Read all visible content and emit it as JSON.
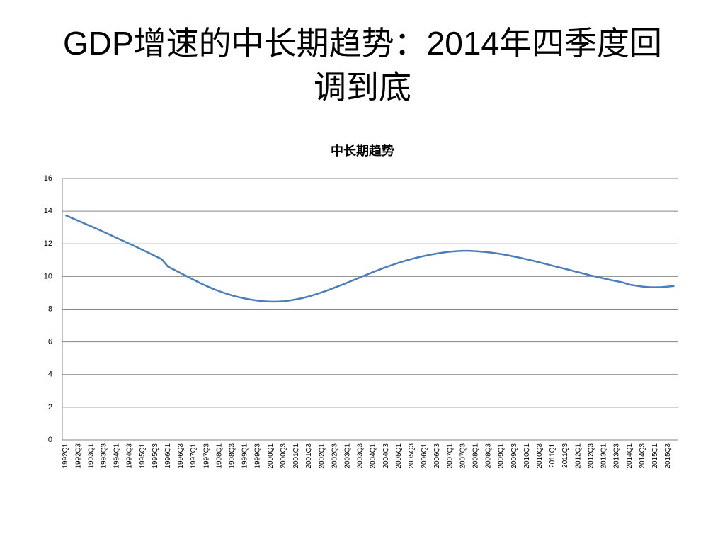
{
  "slide": {
    "title": "GDP增速的中长期趋势：2014年四季度回调到底"
  },
  "chart_data": {
    "type": "line",
    "title": "中长期趋势",
    "categories": [
      "1992Q1",
      null,
      "1992Q3",
      null,
      "1993Q1",
      null,
      "1993Q3",
      null,
      "1994Q1",
      null,
      "1994Q3",
      null,
      "1995Q1",
      null,
      "1995Q3",
      null,
      "1996Q1",
      null,
      "1996Q3",
      null,
      "1997Q1",
      null,
      "1997Q3",
      null,
      "1998Q1",
      null,
      "1998Q3",
      null,
      "1999Q1",
      null,
      "1999Q3",
      null,
      "2000Q1",
      null,
      "2000Q3",
      null,
      "2001Q1",
      null,
      "2001Q3",
      null,
      "2002Q1",
      null,
      "2002Q3",
      null,
      "2003Q1",
      null,
      "2003Q3",
      null,
      "2004Q1",
      null,
      "2004Q3",
      null,
      "2005Q1",
      null,
      "2005Q3",
      null,
      "2006Q1",
      null,
      "2006Q3",
      null,
      "2007Q1",
      null,
      "2007Q3",
      null,
      "2008Q1",
      null,
      "2008Q3",
      null,
      "2009Q1",
      null,
      "2009Q3",
      null,
      "2010Q1",
      null,
      "2010Q3",
      null,
      "2011Q1",
      null,
      "2011Q3",
      null,
      "2012Q1",
      null,
      "2012Q3",
      null,
      "2013Q1",
      null,
      "2013Q3",
      null,
      "2014Q1",
      null,
      "2014Q3",
      null,
      "2015Q1",
      null,
      "2015Q3",
      null
    ],
    "values": [
      13.75,
      13.58,
      13.41,
      13.24,
      13.07,
      12.9,
      12.72,
      12.54,
      12.36,
      12.18,
      12.0,
      11.82,
      11.63,
      11.44,
      11.25,
      11.06,
      10.6,
      10.4,
      10.2,
      10.0,
      9.8,
      9.6,
      9.42,
      9.25,
      9.1,
      8.96,
      8.84,
      8.74,
      8.65,
      8.58,
      8.52,
      8.48,
      8.46,
      8.46,
      8.48,
      8.53,
      8.6,
      8.68,
      8.78,
      8.9,
      9.03,
      9.17,
      9.32,
      9.47,
      9.63,
      9.79,
      9.95,
      10.11,
      10.27,
      10.42,
      10.57,
      10.71,
      10.84,
      10.96,
      11.07,
      11.17,
      11.26,
      11.34,
      11.41,
      11.47,
      11.52,
      11.55,
      11.57,
      11.57,
      11.55,
      11.52,
      11.48,
      11.43,
      11.37,
      11.3,
      11.22,
      11.14,
      11.05,
      10.96,
      10.86,
      10.76,
      10.66,
      10.56,
      10.46,
      10.36,
      10.26,
      10.16,
      10.06,
      9.97,
      9.88,
      9.79,
      9.71,
      9.63,
      9.5,
      9.44,
      9.38,
      9.35,
      9.34,
      9.35,
      9.38,
      9.42
    ],
    "color": "#4a7ebb",
    "ylim": [
      0,
      16
    ],
    "yticks": [
      0,
      2,
      4,
      6,
      8,
      10,
      12,
      14,
      16
    ],
    "grid": true
  }
}
